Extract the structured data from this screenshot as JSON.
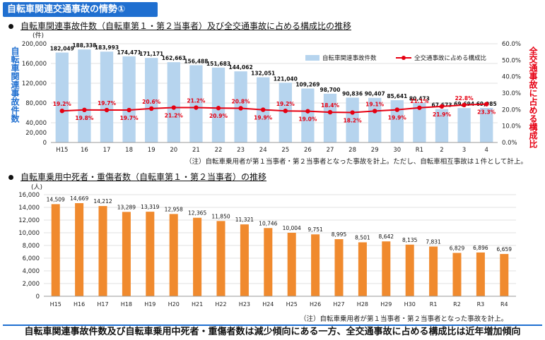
{
  "page_title": "自転車関連交通事故の情勢①",
  "section1": {
    "heading": "自転車関連事故件数（自転車第１・第２当事者）及び全交通事故に占める構成比の推移",
    "note": "（注）自転車乗用者が第１当事者・第２当事者となった事故を計上。ただし、自転車相互事故は１件として計上。"
  },
  "section2": {
    "heading": "自転車乗用中死者・重傷者数（自転車第１・第２当事者）の推移",
    "note": "（注）自転車乗用者が第１当事者・第２当事者となった事故を計上。"
  },
  "footer": "自転車関連事故件数及び自転車乗用中死者・重傷者数は減少傾向にある一方、全交通事故に占める構成比は近年増加傾向",
  "chart_data": [
    {
      "type": "bar",
      "left_unit": "(件)",
      "ylabel": "自転車関連事故件数",
      "y2label": "全交通事故に占める構成比",
      "categories": [
        "H15",
        "16",
        "17",
        "18",
        "19",
        "20",
        "21",
        "22",
        "23",
        "24",
        "25",
        "26",
        "27",
        "28",
        "29",
        "30",
        "R1",
        "2",
        "3",
        "4"
      ],
      "ylim": [
        0,
        200000
      ],
      "yticks": [
        "0",
        "40,000",
        "80,000",
        "120,000",
        "160,000",
        "200,000"
      ],
      "yticks_extra": [
        "20,000"
      ],
      "y2lim": [
        0,
        60
      ],
      "y2ticks": [
        "0.0%",
        "10.0%",
        "20.0%",
        "30.0%",
        "40.0%",
        "50.0%",
        "60.0%"
      ],
      "legend": "top-right",
      "series": [
        {
          "name": "自転車関連事故件数",
          "kind": "bar",
          "color": "#b6d4ee",
          "values": [
            182049,
            188338,
            183993,
            174471,
            171171,
            162663,
            156488,
            151683,
            144062,
            132051,
            121040,
            109269,
            98700,
            90836,
            90407,
            85641,
            80473,
            67673,
            69694,
            69985
          ],
          "labels": [
            "182,049",
            "188,338",
            "183,993",
            "174,471",
            "171,171",
            "162,663",
            "156,488",
            "151,683",
            "144,062",
            "132,051",
            "121,040",
            "109,269",
            "98,700",
            "90,836",
            "90,407",
            "85,641",
            "80,473",
            "67,673",
            "69,694",
            "69,985"
          ]
        },
        {
          "name": "全交通事故に占める構成比",
          "kind": "line",
          "axis": "right",
          "color": "#e60012",
          "values": [
            19.2,
            19.8,
            19.7,
            19.7,
            20.6,
            21.2,
            21.2,
            20.9,
            20.8,
            19.9,
            19.2,
            19.0,
            18.4,
            18.2,
            19.1,
            19.9,
            21.1,
            21.9,
            22.8,
            23.3
          ],
          "labels": [
            "19.2%",
            "19.8%",
            "19.7%",
            "19.7%",
            "20.6%",
            "21.2%",
            "21.2%",
            "20.9%",
            "20.8%",
            "19.9%",
            "19.2%",
            "19.0%",
            "18.4%",
            "18.2%",
            "19.1%",
            "19.9%",
            "21.1%",
            "21.9%",
            "22.8%",
            "23.3%"
          ]
        }
      ]
    },
    {
      "type": "bar",
      "left_unit": "(人)",
      "categories": [
        "H15",
        "H16",
        "H17",
        "H18",
        "H19",
        "H20",
        "H21",
        "H22",
        "H23",
        "H24",
        "H25",
        "H26",
        "H27",
        "H28",
        "H29",
        "H30",
        "R1",
        "R2",
        "R3",
        "R4"
      ],
      "ylim": [
        0,
        16000
      ],
      "yticks": [
        "0",
        "2,000",
        "4,000",
        "6,000",
        "8,000",
        "10,000",
        "12,000",
        "14,000",
        "16,000"
      ],
      "series": [
        {
          "color": "#f08a2e",
          "values": [
            14509,
            14669,
            14212,
            13289,
            13319,
            12958,
            12365,
            11850,
            11321,
            10746,
            10004,
            9751,
            8995,
            8501,
            8642,
            8135,
            7831,
            6829,
            6896,
            6659
          ],
          "labels": [
            "14,509",
            "14,669",
            "14,212",
            "13,289",
            "13,319",
            "12,958",
            "12,365",
            "11,850",
            "11,321",
            "10,746",
            "10,004",
            "9,751",
            "8,995",
            "8,501",
            "8,642",
            "8,135",
            "7,831",
            "6,829",
            "6,896",
            "6,659"
          ]
        }
      ]
    }
  ]
}
